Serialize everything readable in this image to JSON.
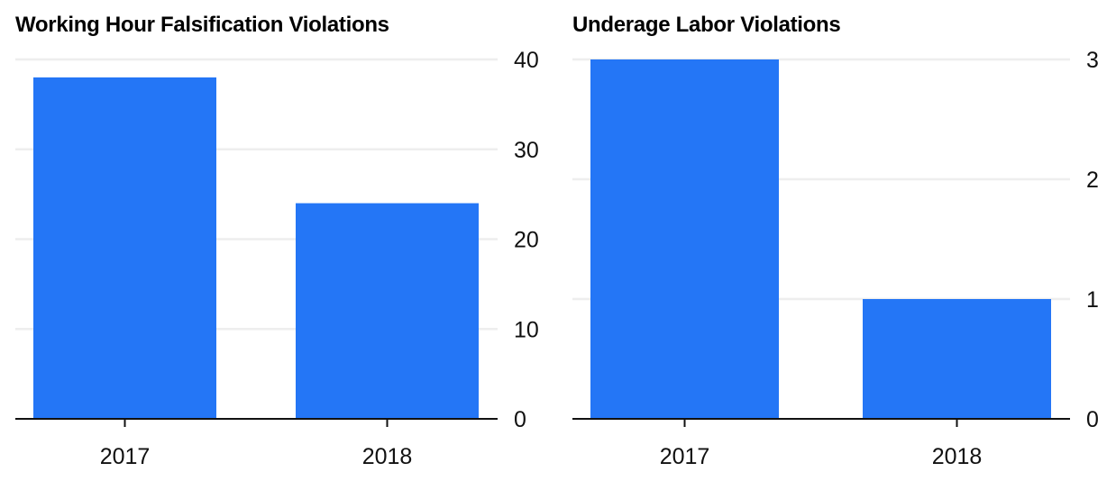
{
  "chart_data": [
    {
      "type": "bar",
      "title": "Working Hour Falsification Violations",
      "categories": [
        "2017",
        "2018"
      ],
      "values": [
        38,
        24
      ],
      "ylim": [
        0,
        40
      ],
      "yticks": [
        "0",
        "10",
        "20",
        "30",
        "40"
      ],
      "xlabel": "",
      "ylabel": "",
      "grid": true,
      "y_axis_side": "right",
      "bar_color": "#2476f6"
    },
    {
      "type": "bar",
      "title": "Underage Labor Violations",
      "categories": [
        "2017",
        "2018"
      ],
      "values": [
        3,
        1
      ],
      "ylim": [
        0,
        3
      ],
      "yticks": [
        "0",
        "1",
        "2",
        "3"
      ],
      "xlabel": "",
      "ylabel": "",
      "grid": true,
      "y_axis_side": "right",
      "bar_color": "#2476f6"
    }
  ]
}
